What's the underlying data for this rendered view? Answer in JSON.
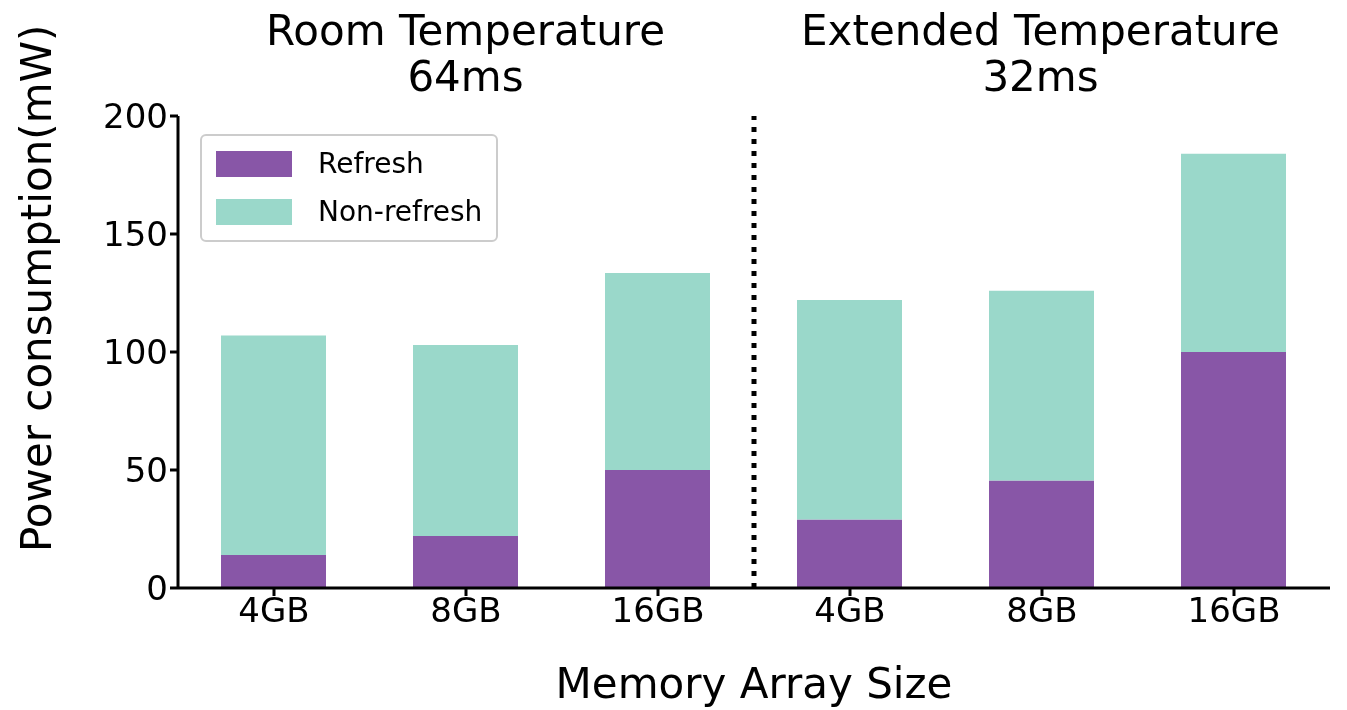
{
  "chart_data": {
    "type": "bar",
    "stacked": true,
    "xlabel": "Memory Array Size",
    "ylabel": "Power consumption(mW)",
    "categories": [
      "4GB",
      "8GB",
      "16GB",
      "4GB",
      "8GB",
      "16GB"
    ],
    "ylim": [
      0,
      200
    ],
    "yticks": [
      0,
      50,
      100,
      150,
      200
    ],
    "series": [
      {
        "name": "Refresh",
        "color": "#8856a7",
        "values": [
          14,
          22,
          50,
          29,
          45.5,
          100
        ]
      },
      {
        "name": "Non-refresh",
        "color": "#9ad8ca",
        "values": [
          93,
          81,
          83.5,
          93,
          80.5,
          84
        ]
      }
    ],
    "annotations": [
      "Room Temperature\n64ms",
      "Extended Temperature\n32ms"
    ],
    "legend": "top left",
    "grid": false
  }
}
